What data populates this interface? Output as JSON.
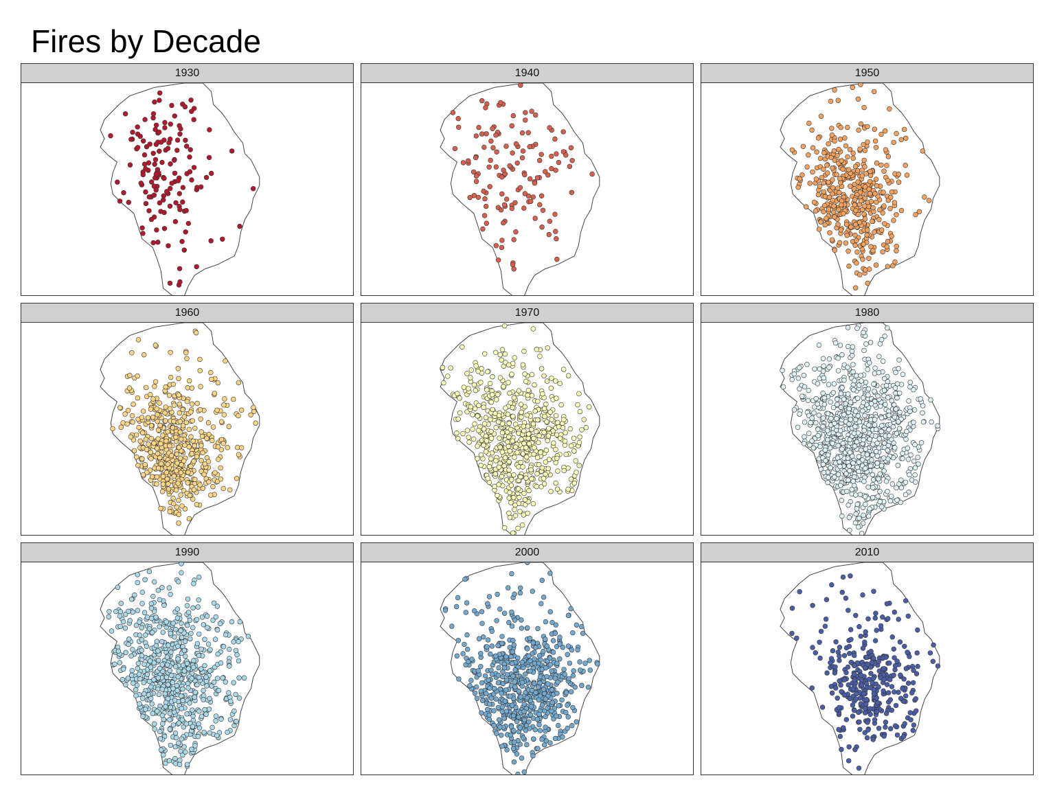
{
  "title": "Fires by Decade",
  "chart_data": {
    "type": "scatter",
    "title": "Fires by Decade",
    "facet_variable": "decade",
    "outline_color": "#444444",
    "point_stroke_color": "#333333",
    "panels": [
      {
        "label": "1930",
        "color": "#b2182b",
        "approx_fire_count": 150,
        "extent": "western half"
      },
      {
        "label": "1940",
        "color": "#d6604d",
        "approx_fire_count": 140,
        "extent": "western and central"
      },
      {
        "label": "1950",
        "color": "#f4a25f",
        "approx_fire_count": 460,
        "extent": "western and central"
      },
      {
        "label": "1960",
        "color": "#fdd587",
        "approx_fire_count": 560,
        "extent": "western and central"
      },
      {
        "label": "1970",
        "color": "#ffffbf",
        "approx_fire_count": 640,
        "extent": "whole park"
      },
      {
        "label": "1980",
        "color": "#e0f3f8",
        "approx_fire_count": 920,
        "extent": "whole park"
      },
      {
        "label": "1990",
        "color": "#abd9e9",
        "approx_fire_count": 700,
        "extent": "whole park"
      },
      {
        "label": "2000",
        "color": "#74a9cf",
        "approx_fire_count": 640,
        "extent": "whole park"
      },
      {
        "label": "2010",
        "color": "#4a5ea8",
        "approx_fire_count": 360,
        "extent": "southern and central"
      }
    ]
  }
}
